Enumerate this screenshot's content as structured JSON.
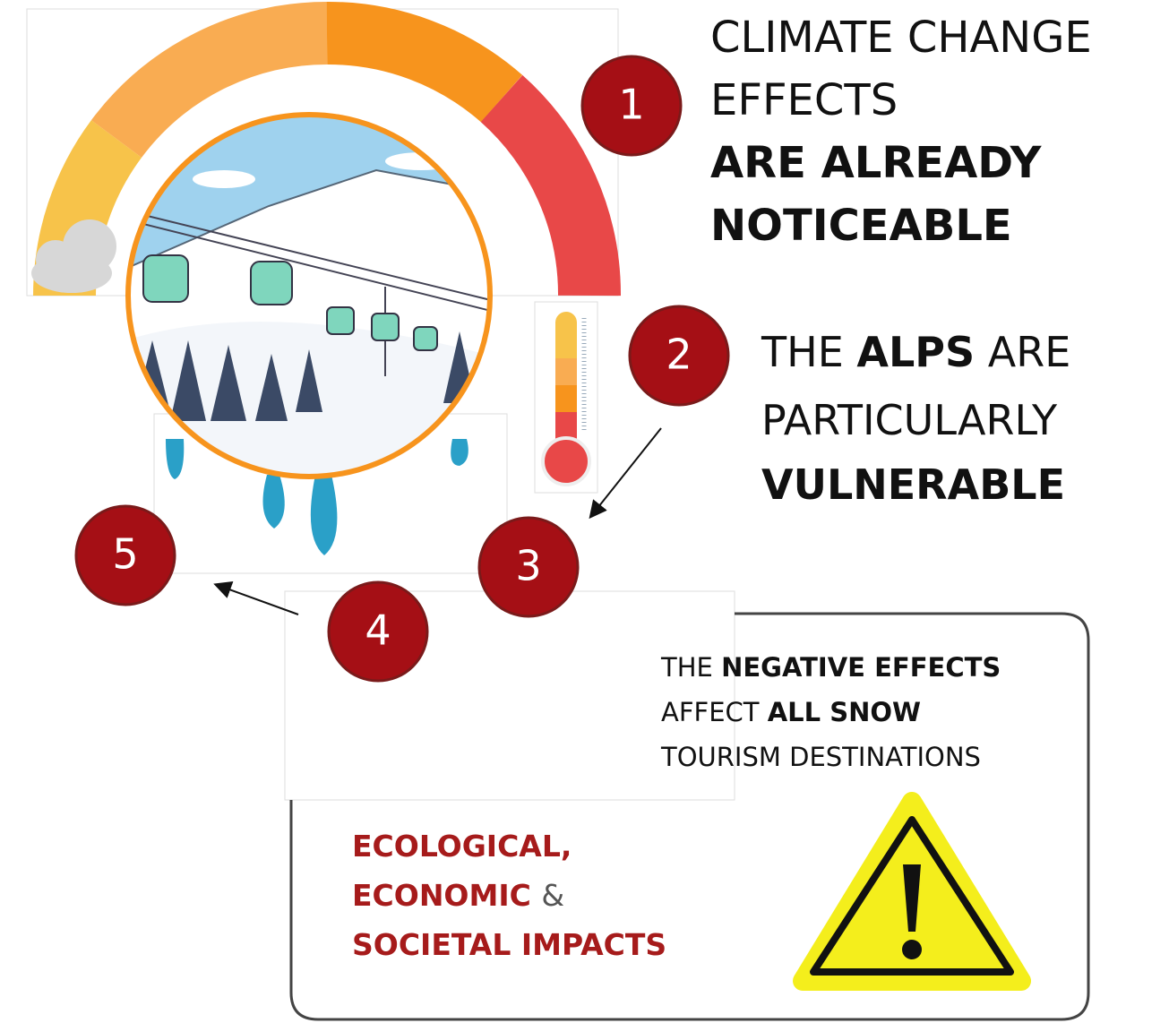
{
  "markers": [
    "1",
    "2",
    "3",
    "4",
    "5"
  ],
  "statement_1": {
    "lines": [
      "CLIMATE CHANGE",
      "EFFECTS",
      "ARE ALREADY",
      "NOTICEABLE"
    ]
  },
  "statement_2": {
    "line_1": [
      "THE",
      "ALPS",
      "ARE"
    ],
    "line_2": "PARTICULARLY",
    "line_3": "VULNERABLE"
  },
  "statement_3": {
    "line_1": [
      "THE",
      "NEGATIVE EFFECTS"
    ],
    "line_2": [
      "AFFECT",
      "ALL SNOW"
    ],
    "line_3": "TOURISM DESTINATIONS"
  },
  "impacts": {
    "line_1": "ECOLOGICAL,",
    "line_2": [
      "ECONOMIC",
      "&"
    ],
    "line_3": "SOCIETAL IMPACTS"
  }
}
